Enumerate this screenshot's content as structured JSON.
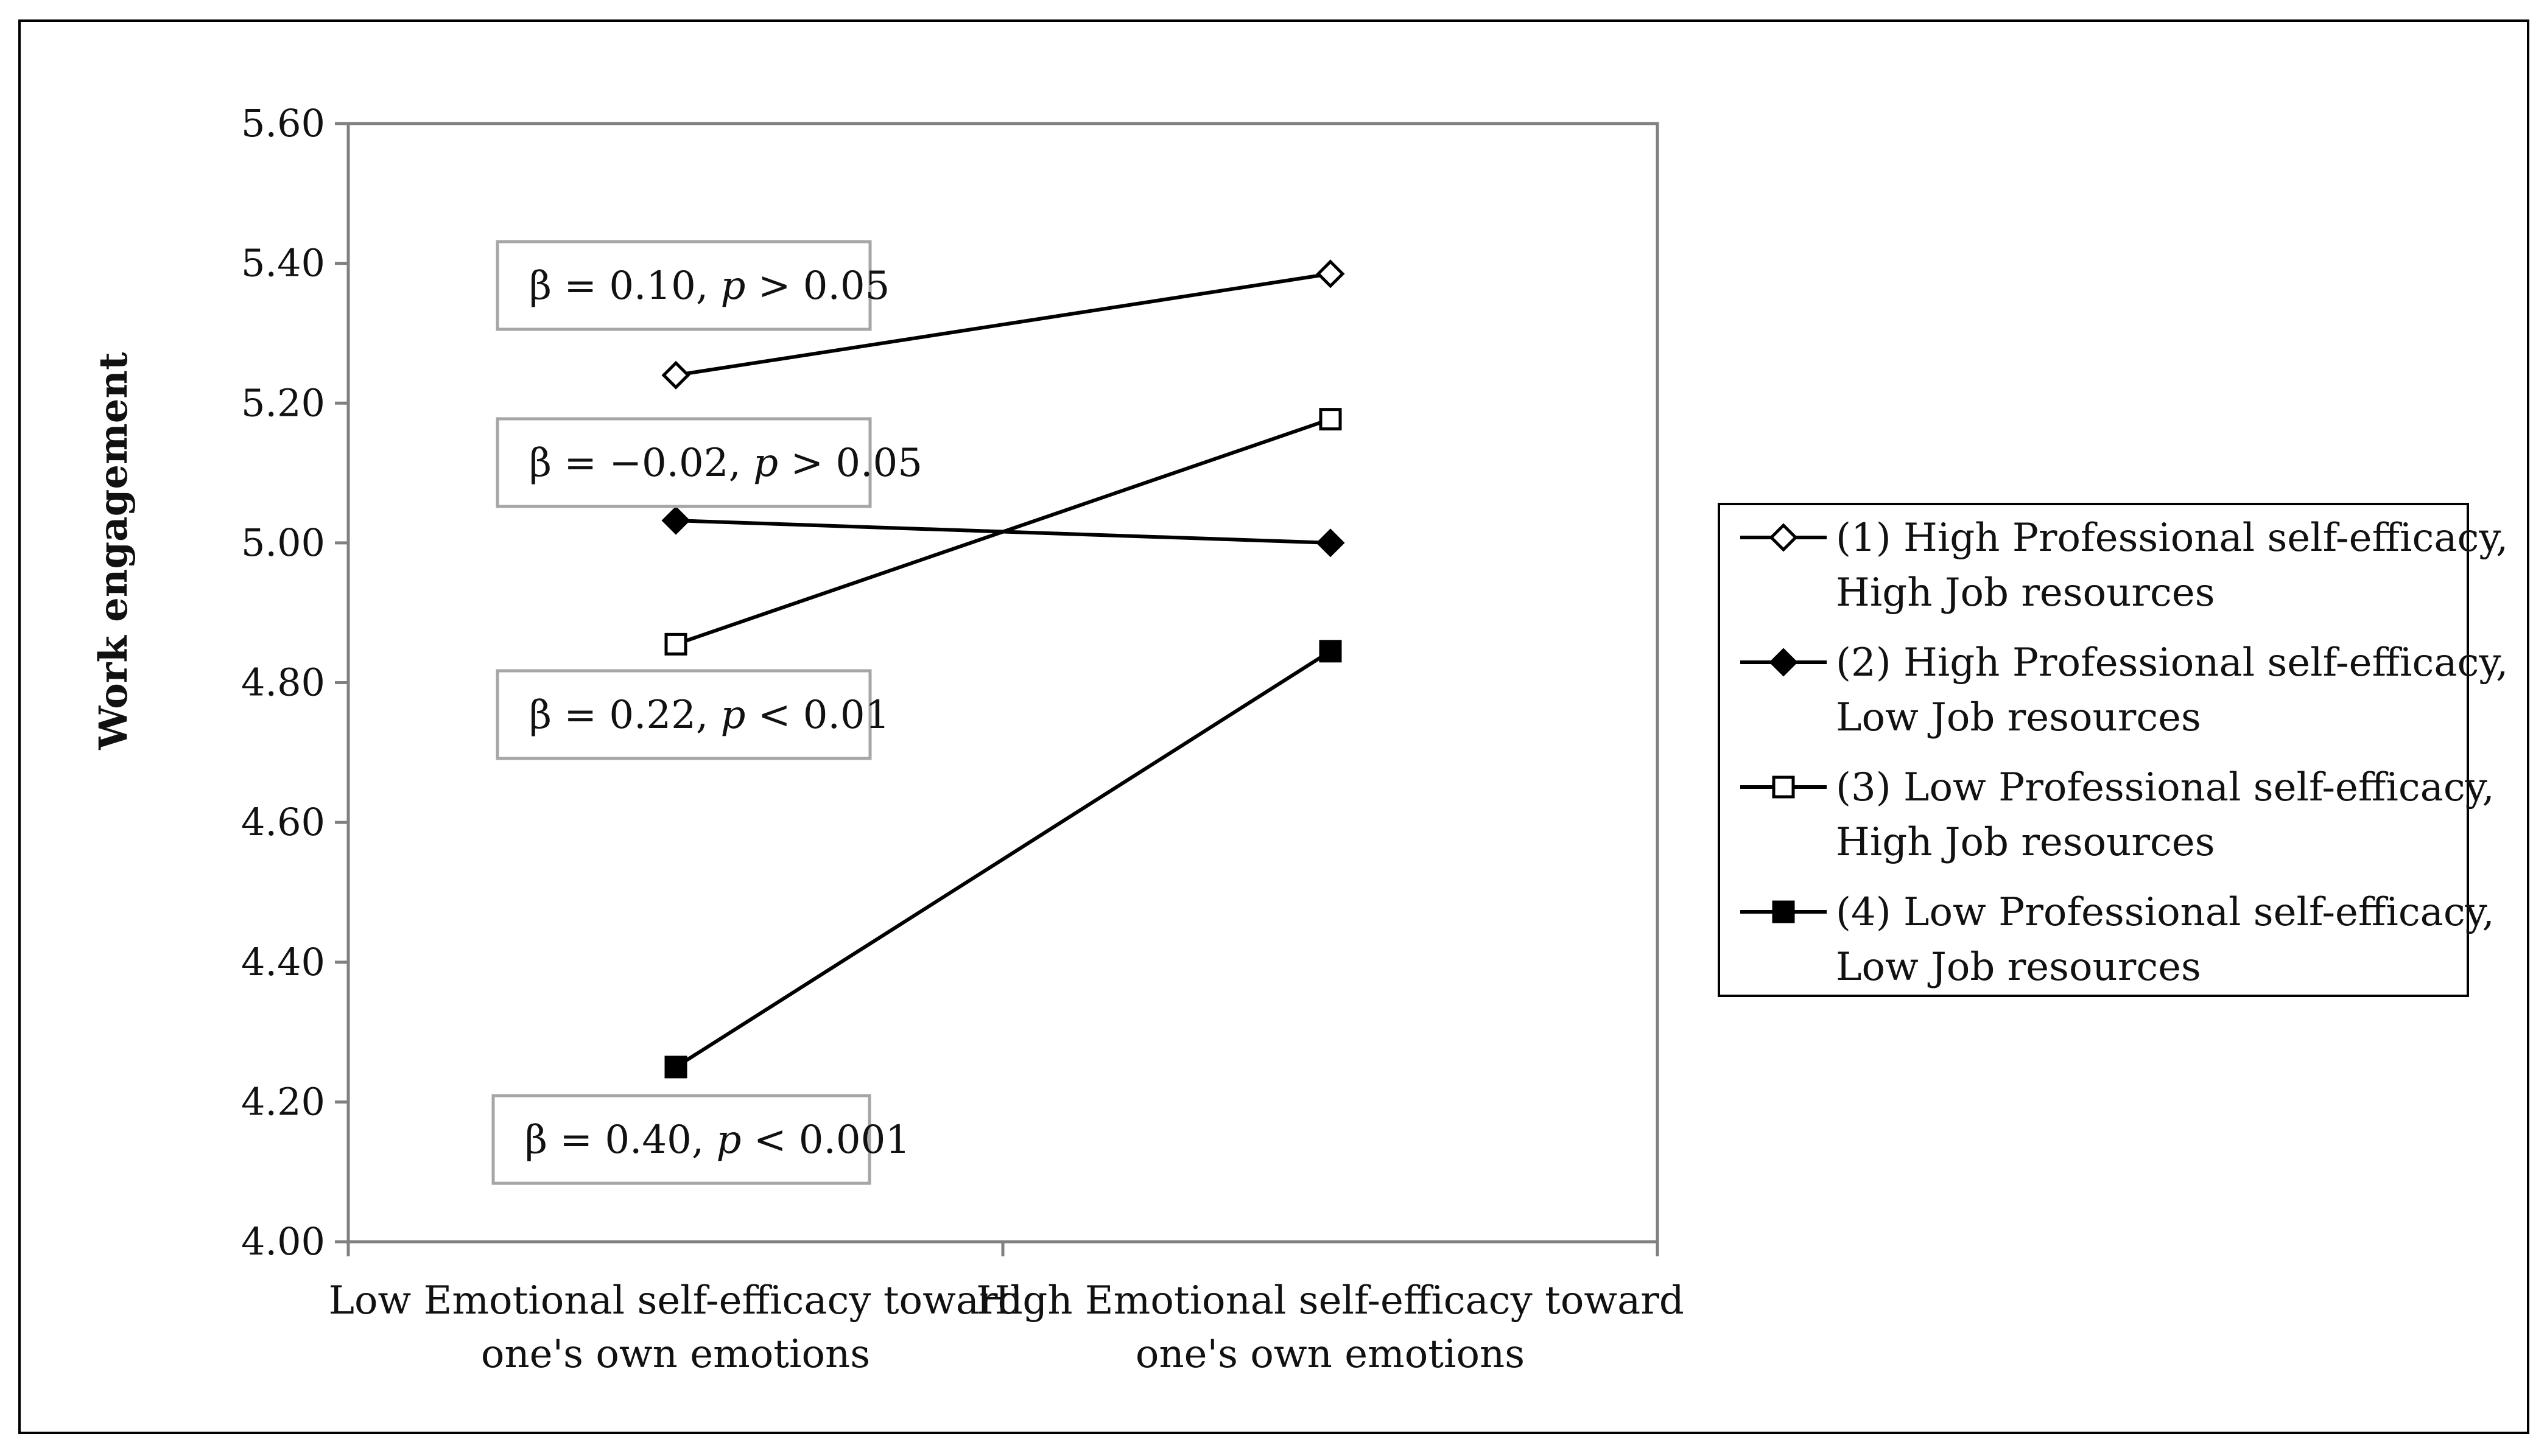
{
  "chart_data": {
    "type": "line",
    "ylabel": "Work engagement",
    "xlabel": "",
    "ylim": [
      4.0,
      5.6
    ],
    "yticks": [
      "4.00",
      "4.20",
      "4.40",
      "4.60",
      "4.80",
      "5.00",
      "5.20",
      "5.40",
      "5.60"
    ],
    "ytick_values": [
      4.0,
      4.2,
      4.4,
      4.6,
      4.8,
      5.0,
      5.2,
      5.4,
      5.6
    ],
    "categories": [
      [
        "Low Emotional self-efficacy toward",
        "one's own emotions"
      ],
      [
        "High Emotional self-efficacy toward",
        "one's own emotions"
      ]
    ],
    "grid": false,
    "legend_position": "right",
    "series": [
      {
        "name_lines": [
          "(1) High Professional self-efficacy,",
          "High Job resources"
        ],
        "marker": "diamond-open",
        "values": [
          5.24,
          5.385
        ]
      },
      {
        "name_lines": [
          "(2) High Professional self-efficacy,",
          "Low Job resources"
        ],
        "marker": "diamond-filled",
        "values": [
          5.032,
          5.0
        ]
      },
      {
        "name_lines": [
          "(3) Low Professional self-efficacy,",
          "High Job resources"
        ],
        "marker": "square-open",
        "values": [
          4.855,
          5.177
        ]
      },
      {
        "name_lines": [
          "(4) Low Professional self-efficacy,",
          "Low Job resources"
        ],
        "marker": "square-filled",
        "values": [
          4.25,
          4.845
        ]
      }
    ],
    "annotations": [
      {
        "beta": "β = 0.10, ",
        "p": "p",
        "rest": " > 0.05"
      },
      {
        "beta": "β = −0.02, ",
        "p": "p",
        "rest": " > 0.05"
      },
      {
        "beta": "β = 0.22, ",
        "p": "p",
        "rest": " < 0.01"
      },
      {
        "beta": "β = 0.40, ",
        "p": "p",
        "rest": " < 0.001"
      }
    ],
    "colors": {
      "line": "#000000",
      "axis": "#808080",
      "frame": "#000000"
    }
  }
}
